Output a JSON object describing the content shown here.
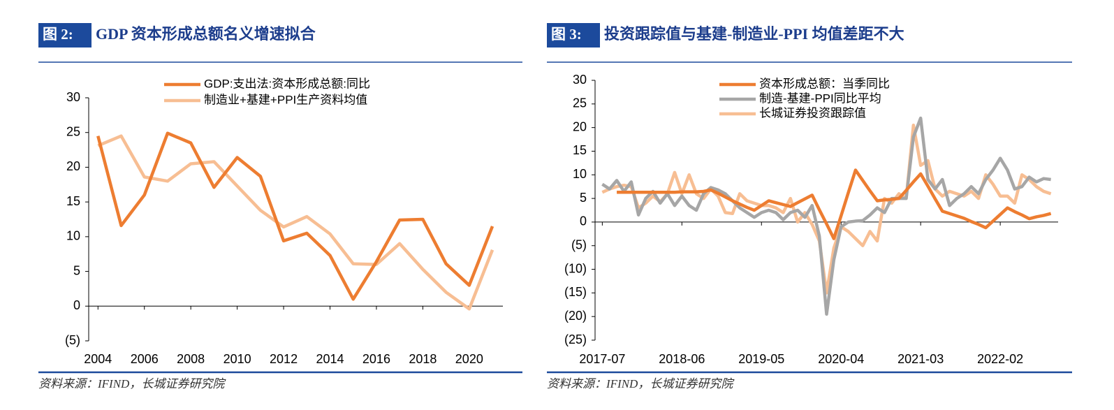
{
  "chart_data": [
    {
      "type": "line",
      "label": "图 2:",
      "title": "GDP 资本形成总额名义增速拟合",
      "source": "资料来源：IFIND，长城证券研究院",
      "x": [
        2004,
        2005,
        2006,
        2007,
        2008,
        2009,
        2010,
        2011,
        2012,
        2013,
        2014,
        2015,
        2016,
        2017,
        2018,
        2019,
        2020,
        2021
      ],
      "xlim": [
        2003.6,
        2021.45
      ],
      "xticks": [
        2004,
        2006,
        2008,
        2010,
        2012,
        2014,
        2016,
        2018,
        2020
      ],
      "ylim": [
        -5,
        30
      ],
      "yticks": [
        30,
        25,
        20,
        15,
        10,
        5,
        0,
        {
          "value": -5,
          "label": "(5)"
        }
      ],
      "negative_label_color": "#FF0000",
      "series": [
        {
          "name": "GDP:支出法:资本形成总额:同比",
          "color": "#ED7D31",
          "values": [
            24.5,
            11.6,
            16.0,
            24.9,
            23.5,
            17.1,
            21.4,
            18.7,
            9.4,
            10.5,
            7.3,
            1.0,
            6.4,
            12.4,
            12.5,
            6.1,
            3.0,
            11.5
          ]
        },
        {
          "name": "制造业+基建+PPI生产资料均值",
          "color": "#F7BE93",
          "values": [
            23.1,
            24.5,
            18.6,
            18.0,
            20.5,
            20.8,
            17.3,
            13.8,
            11.4,
            12.9,
            10.4,
            6.1,
            6.0,
            9.0,
            5.3,
            2.0,
            -0.4,
            8.1
          ]
        }
      ]
    },
    {
      "type": "line",
      "label": "图 3:",
      "title": "投资跟踪值与基建-制造业-PPI 均值差距不大",
      "source": "资料来源：IFIND，长城证券研究院",
      "categories": [
        "2017-07",
        null,
        null,
        null,
        null,
        null,
        null,
        null,
        null,
        null,
        null,
        "2018-06",
        null,
        null,
        null,
        null,
        null,
        null,
        null,
        null,
        null,
        null,
        "2019-05",
        null,
        null,
        null,
        null,
        null,
        null,
        null,
        null,
        null,
        null,
        "2020-04",
        null,
        null,
        null,
        null,
        null,
        null,
        null,
        null,
        null,
        null,
        "2021-03",
        null,
        null,
        null,
        null,
        null,
        null,
        null,
        null,
        null,
        null,
        "2022-02",
        null,
        null,
        null,
        null,
        null,
        null,
        null
      ],
      "ylim": [
        -25,
        30
      ],
      "yticks": [
        30,
        25,
        20,
        15,
        10,
        5,
        0,
        {
          "value": -5,
          "label": "(5)"
        },
        {
          "value": -10,
          "label": "(10)"
        },
        {
          "value": -15,
          "label": "(15)"
        },
        {
          "value": -20,
          "label": "(20)"
        },
        {
          "value": -25,
          "label": "(25)"
        }
      ],
      "negative_label_color": "#FF0000",
      "series": [
        {
          "name": "资本形成总额：当季同比",
          "color": "#ED7D31",
          "values": [
            null,
            null,
            6.3,
            6.3,
            6.3,
            6.3,
            6.3,
            6.3,
            6.3,
            6.3,
            6.3,
            6.4,
            6.4,
            6.4,
            6.5,
            6.8,
            6.1,
            5.3,
            4.5,
            3.8,
            3.1,
            2.5,
            3.5,
            4.5,
            4.1,
            3.7,
            3.3,
            4.1,
            4.9,
            5.7,
            2.6,
            -0.4,
            -3.5,
            1.3,
            6.2,
            11.0,
            8.8,
            6.6,
            4.5,
            4.7,
            4.8,
            5.0,
            6.7,
            8.5,
            10.2,
            7.6,
            4.9,
            2.3,
            1.8,
            1.3,
            0.8,
            0.1,
            -0.5,
            -1.2,
            0.2,
            1.6,
            3.0,
            2.2,
            1.5,
            0.7,
            1.1,
            1.4,
            1.8
          ]
        },
        {
          "name": "制造-基建-PPI同比平均",
          "color": "#A6A6A6",
          "values": [
            8.0,
            7.0,
            8.8,
            6.5,
            8.5,
            1.5,
            5.0,
            6.5,
            4.0,
            6.0,
            3.5,
            5.5,
            3.5,
            2.5,
            6.0,
            7.3,
            6.8,
            6.0,
            4.5,
            3.0,
            2.0,
            1.0,
            2.0,
            2.5,
            2.0,
            0.5,
            2.0,
            2.5,
            1.0,
            3.5,
            -3.0,
            -19.5,
            -8.0,
            -1.0,
            0.0,
            0.2,
            0.3,
            1.5,
            3.0,
            2.0,
            5.0,
            5.0,
            5.0,
            18.0,
            22.0,
            9.0,
            7.0,
            9.0,
            3.5,
            5.0,
            6.0,
            7.5,
            6.0,
            9.0,
            11.0,
            13.5,
            11.0,
            7.0,
            7.5,
            9.5,
            8.5,
            9.2,
            9.0
          ]
        },
        {
          "name": "长城证券投资跟踪值",
          "color": "#F7BE93",
          "values": [
            6.3,
            7.0,
            7.5,
            7.8,
            7.5,
            3.0,
            4.0,
            5.5,
            4.3,
            6.0,
            10.5,
            6.0,
            10.0,
            6.0,
            5.0,
            7.0,
            5.5,
            2.0,
            1.8,
            6.0,
            4.5,
            4.0,
            3.5,
            3.5,
            3.0,
            2.0,
            5.0,
            0.0,
            2.0,
            -0.5,
            -4.0,
            -15.0,
            -5.5,
            -1.0,
            -2.0,
            -3.5,
            -5.0,
            -2.0,
            -4.0,
            5.0,
            4.0,
            6.0,
            5.0,
            20.5,
            12.0,
            13.0,
            7.0,
            5.5,
            6.5,
            6.0,
            5.5,
            6.5,
            5.0,
            10.0,
            8.0,
            5.5,
            5.5,
            4.0,
            10.0,
            9.0,
            7.5,
            6.5,
            6.0
          ]
        }
      ]
    }
  ]
}
